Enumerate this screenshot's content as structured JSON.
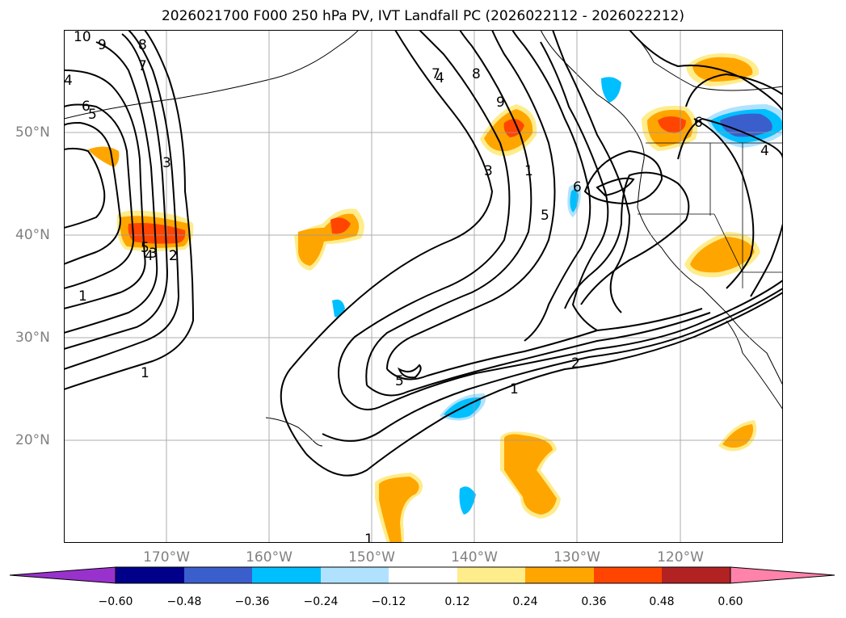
{
  "title": "2026021700 F000 250 hPa PV, IVT Landfall PC (2026022112 - 2026022212)",
  "map": {
    "lat_labels": [
      {
        "text": "50°N",
        "lat": 50
      },
      {
        "text": "40°N",
        "lat": 40
      },
      {
        "text": "30°N",
        "lat": 30
      },
      {
        "text": "20°N",
        "lat": 20
      }
    ],
    "lon_labels": [
      {
        "text": "170°W",
        "lon": -170
      },
      {
        "text": "160°W",
        "lon": -160
      },
      {
        "text": "150°W",
        "lon": -150
      },
      {
        "text": "140°W",
        "lon": -140
      },
      {
        "text": "130°W",
        "lon": -130
      },
      {
        "text": "120°W",
        "lon": -120
      }
    ],
    "extent": {
      "lon_min": -180,
      "lon_max": -110,
      "lat_min": 10,
      "lat_max": 60
    },
    "grid": true,
    "contour_labels": [
      "10",
      "9",
      "8",
      "7",
      "6",
      "5",
      "4",
      "3",
      "2",
      "1",
      "1",
      "2",
      "3",
      "4",
      "5",
      "9",
      "8",
      "7",
      "6",
      "5",
      "4",
      "3",
      "2",
      "1",
      "1",
      "6",
      "5",
      "4",
      "1"
    ]
  },
  "colorbar": {
    "ticks": [
      "−0.60",
      "−0.48",
      "−0.36",
      "−0.24",
      "−0.12",
      "0.12",
      "0.24",
      "0.36",
      "0.48",
      "0.60"
    ],
    "colors": [
      "#9932cc",
      "#00008b",
      "#3a5fcd",
      "#00bfff",
      "#b0e2ff",
      "#ffffff",
      "#ffec8b",
      "#ffa500",
      "#ff4500",
      "#b22222",
      "#ff82ab"
    ]
  }
}
